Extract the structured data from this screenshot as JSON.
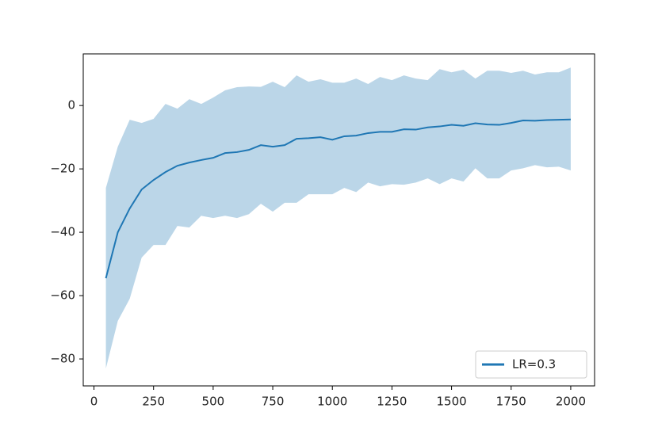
{
  "chart_data": {
    "type": "line",
    "x": [
      50,
      100,
      150,
      200,
      250,
      300,
      350,
      400,
      450,
      500,
      550,
      600,
      650,
      700,
      750,
      800,
      850,
      900,
      950,
      1000,
      1050,
      1100,
      1150,
      1200,
      1250,
      1300,
      1350,
      1400,
      1450,
      1500,
      1550,
      1600,
      1650,
      1700,
      1750,
      1800,
      1850,
      1900,
      1950,
      2000
    ],
    "series": [
      {
        "name": "LR=0.3",
        "color": "#1f77b4",
        "values": [
          -54.5,
          -40,
          -32.5,
          -26.5,
          -23.5,
          -21,
          -19,
          -18,
          -17.2,
          -16.5,
          -15,
          -14.7,
          -14,
          -12.5,
          -13,
          -12.5,
          -10.5,
          -10.3,
          -10,
          -10.8,
          -9.7,
          -9.5,
          -8.7,
          -8.3,
          -8.3,
          -7.5,
          -7.6,
          -6.9,
          -6.6,
          -6.1,
          -6.4,
          -5.6,
          -6,
          -6.1,
          -5.5,
          -4.7,
          -4.8,
          -4.6,
          -4.5,
          -4.4
        ],
        "upper": [
          -26,
          -13,
          -4.5,
          -5.5,
          -4.2,
          0.5,
          -1,
          2,
          0.5,
          2.5,
          4.8,
          5.8,
          6,
          5.9,
          7.5,
          5.8,
          9.5,
          7.5,
          8.3,
          7.2,
          7.2,
          8.5,
          6.8,
          9,
          8,
          9.5,
          8.5,
          8,
          11.5,
          10.5,
          11.3,
          8.5,
          11,
          11,
          10.3,
          11,
          9.8,
          10.5,
          10.5,
          12
        ],
        "lower": [
          -83,
          -68,
          -61,
          -48,
          -44,
          -44,
          -38,
          -38.5,
          -34.8,
          -35.5,
          -34.8,
          -35.5,
          -34.3,
          -31,
          -33.5,
          -30.7,
          -30.7,
          -28,
          -28,
          -28,
          -26,
          -27.3,
          -24.3,
          -25.5,
          -24.8,
          -25,
          -24.3,
          -23,
          -24.8,
          -23,
          -24,
          -19.8,
          -23,
          -23,
          -20.5,
          -19.8,
          -18.8,
          -19.5,
          -19.3,
          -20.5
        ]
      }
    ],
    "xlim": [
      -45,
      2100
    ],
    "ylim": [
      -88.5,
      16.3
    ],
    "xticks": [
      0,
      250,
      500,
      750,
      1000,
      1250,
      1500,
      1750,
      2000
    ],
    "yticks": [
      {
        "value": -80,
        "label": "−80"
      },
      {
        "value": -60,
        "label": "−60"
      },
      {
        "value": -40,
        "label": "−40"
      },
      {
        "value": -20,
        "label": "−20"
      },
      0
    ],
    "legend": "lower right"
  }
}
